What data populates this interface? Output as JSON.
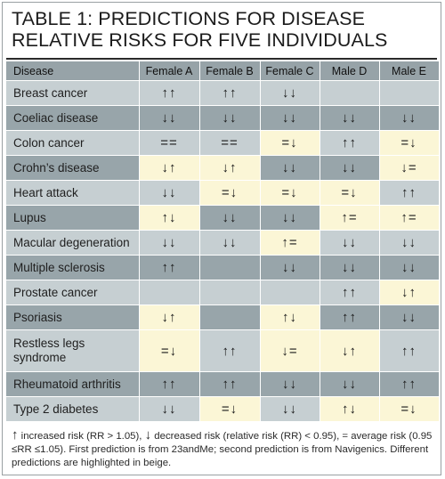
{
  "title": "TABLE 1: PREDICTIONS FOR DISEASE RELATIVE RISKS FOR FIVE INDIVIDUALS",
  "headers": [
    "Disease",
    "Female A",
    "Female B",
    "Female C",
    "Male D",
    "Male E"
  ],
  "rows": [
    {
      "disease": "Breast cancer",
      "cells": [
        "↑↑",
        "↑↑",
        "↓↓",
        "",
        ""
      ],
      "highlight": [
        false,
        false,
        false,
        false,
        false
      ],
      "shade": "light"
    },
    {
      "disease": "Coeliac disease",
      "cells": [
        "↓↓",
        "↓↓",
        "↓↓",
        "↓↓",
        "↓↓"
      ],
      "highlight": [
        false,
        false,
        false,
        false,
        false
      ],
      "shade": "dark"
    },
    {
      "disease": "Colon cancer",
      "cells": [
        "==",
        "==",
        "=↓",
        "↑↑",
        "=↓"
      ],
      "highlight": [
        false,
        false,
        true,
        false,
        true
      ],
      "shade": "light"
    },
    {
      "disease": "Crohn’s disease",
      "cells": [
        "↓↑",
        "↓↑",
        "↓↓",
        "↓↓",
        "↓="
      ],
      "highlight": [
        true,
        true,
        false,
        false,
        true
      ],
      "shade": "dark"
    },
    {
      "disease": "Heart attack",
      "cells": [
        "↓↓",
        "=↓",
        "=↓",
        "=↓",
        "↑↑"
      ],
      "highlight": [
        false,
        true,
        true,
        true,
        false
      ],
      "shade": "light"
    },
    {
      "disease": "Lupus",
      "cells": [
        "↑↓",
        "↓↓",
        "↓↓",
        "↑=",
        "↑="
      ],
      "highlight": [
        true,
        false,
        false,
        true,
        true
      ],
      "shade": "dark"
    },
    {
      "disease": "Macular degeneration",
      "cells": [
        "↓↓",
        "↓↓",
        "↑=",
        "↓↓",
        "↓↓"
      ],
      "highlight": [
        false,
        false,
        true,
        false,
        false
      ],
      "shade": "light"
    },
    {
      "disease": "Multiple sclerosis",
      "cells": [
        "↑↑",
        "",
        "↓↓",
        "↓↓",
        "↓↓"
      ],
      "highlight": [
        false,
        false,
        false,
        false,
        false
      ],
      "shade": "dark"
    },
    {
      "disease": "Prostate cancer",
      "cells": [
        "",
        "",
        "",
        "↑↑",
        "↓↑"
      ],
      "highlight": [
        false,
        false,
        false,
        false,
        true
      ],
      "shade": "light"
    },
    {
      "disease": "Psoriasis",
      "cells": [
        "↓↑",
        "",
        "↑↓",
        "↑↑",
        "↓↓"
      ],
      "highlight": [
        true,
        false,
        true,
        false,
        false
      ],
      "shade": "dark"
    },
    {
      "disease": "Restless legs syndrome",
      "cells": [
        "=↓",
        "↑↑",
        "↓=",
        "↓↑",
        "↑↑"
      ],
      "highlight": [
        true,
        false,
        true,
        true,
        false
      ],
      "shade": "light",
      "tall": true
    },
    {
      "disease": "Rheumatoid arthritis",
      "cells": [
        "↑↑",
        "↑↑",
        "↓↓",
        "↓↓",
        "↑↑"
      ],
      "highlight": [
        false,
        false,
        false,
        false,
        false
      ],
      "shade": "dark"
    },
    {
      "disease": "Type 2 diabetes",
      "cells": [
        "↓↓",
        "=↓",
        "↓↓",
        "↑↓",
        "=↓"
      ],
      "highlight": [
        false,
        true,
        false,
        true,
        true
      ],
      "shade": "light"
    }
  ],
  "footnote": {
    "up_arrow": "↑",
    "part1": " increased risk (RR > 1.05), ",
    "down_arrow": "↓",
    "part2": " decreased risk (relative risk (RR) < 0.95), = average risk (0.95 ≤RR ≤1.05). First prediction is from 23andMe; second prediction is from Navigenics. Different predictions are highlighted in beige."
  },
  "colors": {
    "header": "#97a3a8",
    "row_light": "#c6cfd2",
    "row_dark": "#98a5aa",
    "highlight_beige": "#fbf6d6"
  }
}
